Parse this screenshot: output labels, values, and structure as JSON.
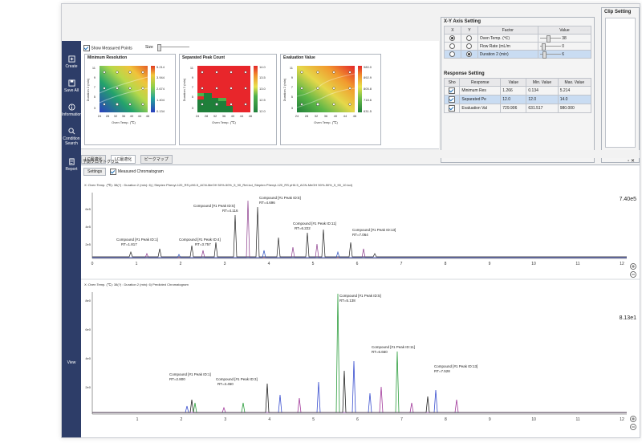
{
  "sidebar": {
    "items": [
      {
        "label": "Create",
        "icon": "create-icon"
      },
      {
        "label": "Save All",
        "icon": "save-all-icon"
      },
      {
        "label": "Information",
        "icon": "information-icon"
      },
      {
        "label": "Condition Search",
        "icon": "search-icon"
      },
      {
        "label": "Report",
        "icon": "report-icon"
      },
      {
        "label": "View",
        "icon": "view-icon"
      }
    ]
  },
  "top": {
    "show_measured_points": "Show Measured Points",
    "size_label": "Size"
  },
  "maps": [
    {
      "title": "Minimum Resolution",
      "xlabel": "Oven Temp. (℃)",
      "ylabel": "Duration 2 (min)",
      "xticks": [
        "24",
        "28",
        "32",
        "36",
        "40",
        "44",
        "46"
      ],
      "yticks": [
        "11",
        "9",
        "7",
        "5",
        "3"
      ],
      "legend": [
        "5.214",
        "3.944",
        "2.674",
        "1.404",
        "0.134"
      ]
    },
    {
      "title": "Separated Peak Count",
      "xlabel": "Oven Temp. (℃)",
      "ylabel": "Duration 2 (min)",
      "xticks": [
        "24",
        "28",
        "32",
        "36",
        "40",
        "44",
        "46"
      ],
      "yticks": [
        "11",
        "9",
        "7",
        "5",
        "3"
      ],
      "legend": [
        "14.0",
        "13.5",
        "13.0",
        "12.5",
        "12.0"
      ]
    },
    {
      "title": "Evaluation Value",
      "xlabel": "Oven Temp. (℃)",
      "ylabel": "Duration 2 (min)",
      "xticks": [
        "24",
        "28",
        "32",
        "36",
        "40",
        "44",
        "46"
      ],
      "yticks": [
        "11",
        "9",
        "7",
        "5",
        "3"
      ],
      "legend": [
        "980.0",
        "892.9",
        "805.8",
        "718.6",
        "631.5"
      ]
    }
  ],
  "xy_axis": {
    "title": "X-Y Axis Setting",
    "headers": [
      "X",
      "Y",
      "Factor",
      "Value"
    ],
    "rows": [
      {
        "factor": "Oven Temp. (℃)",
        "value": "38",
        "x": true,
        "y": false
      },
      {
        "factor": "Flow Rate (mL/m",
        "value": "0",
        "x": false,
        "y": false
      },
      {
        "factor": "Duration 2 (min)",
        "value": "6",
        "x": false,
        "y": true
      }
    ]
  },
  "response": {
    "title": "Response Setting",
    "headers": [
      "Sho",
      "Response",
      "Value",
      "Min. Value",
      "Max. Value"
    ],
    "rows": [
      {
        "name": "Minimum Res",
        "value": "1.266",
        "min": "0.134",
        "max": "5.214"
      },
      {
        "name": "Separated Pe",
        "value": "12.0",
        "min": "12.0",
        "max": "14.0"
      },
      {
        "name": "Evaluation Val",
        "value": "729.906",
        "min": "631.517",
        "max": "980.000"
      }
    ]
  },
  "clip": {
    "title": "Clip Setting"
  },
  "tabs": [
    "LC最適化",
    "LC最適化",
    "ピークマップ"
  ],
  "chrom_header": "予測クロマトグラム",
  "settings_button": "Settings",
  "measured_chrom_label": "Measured Chromatogram",
  "chrom1": {
    "label": "X: Oven Temp. (℃): 38(?) : Duration 2 (min): 6) | Stepten Phenyl-120_RS pH6.5_ACN-MeOH 50%-50%_5_90_Ret.lcd_Stepten Phenyl-120_RS pH6.5_ACN-MeOH 50%-50%_5_90_10.lcd)",
    "ymax": "7.40e5",
    "yticks": [
      "6e5",
      "4e5",
      "2e5"
    ],
    "xticks": [
      "0",
      "1",
      "2",
      "3",
      "4",
      "5",
      "6",
      "7",
      "8",
      "9",
      "10",
      "11",
      "12"
    ],
    "annotations": [
      {
        "name": "Compound [#1 Peak ID:1]",
        "rt": "RT=1.817"
      },
      {
        "name": "Compound [#1 Peak ID:4]",
        "rt": "RT=3.757"
      },
      {
        "name": "Compound [#1 Peak ID:5]",
        "rt": "RT=4.116"
      },
      {
        "name": "Compound [#1 Peak ID:5]",
        "rt": "RT=4.696"
      },
      {
        "name": "Compound [#1 Peak ID:11]",
        "rt": "RT=6.222"
      },
      {
        "name": "Compound [#1 Peak ID:13]",
        "rt": "RT=7.064"
      }
    ]
  },
  "chrom2": {
    "label": "X: Oven Temp. (℃): 38(?) : Duration 2 (min): 6) Predicted Chromatogram",
    "ymax": "8.13e1",
    "yticks": [
      "8e0",
      "6e0",
      "4e0",
      "2e0"
    ],
    "xticks": [
      "1",
      "2",
      "3",
      "4",
      "5",
      "6",
      "7",
      "8",
      "9",
      "10",
      "11",
      "12"
    ],
    "annotations": [
      {
        "name": "Compound [#1 Peak ID:1]",
        "rt": "RT=2.800"
      },
      {
        "name": "Compound [#1 Peak ID:3]",
        "rt": "RT=3.450"
      },
      {
        "name": "Compound [#1 Peak ID:5]",
        "rt": "RT=5.138"
      },
      {
        "name": "Compound [#1 Peak ID:11]",
        "rt": "RT=6.660"
      },
      {
        "name": "Compound [#1 Peak ID:13]",
        "rt": "RT=7.528"
      }
    ]
  }
}
